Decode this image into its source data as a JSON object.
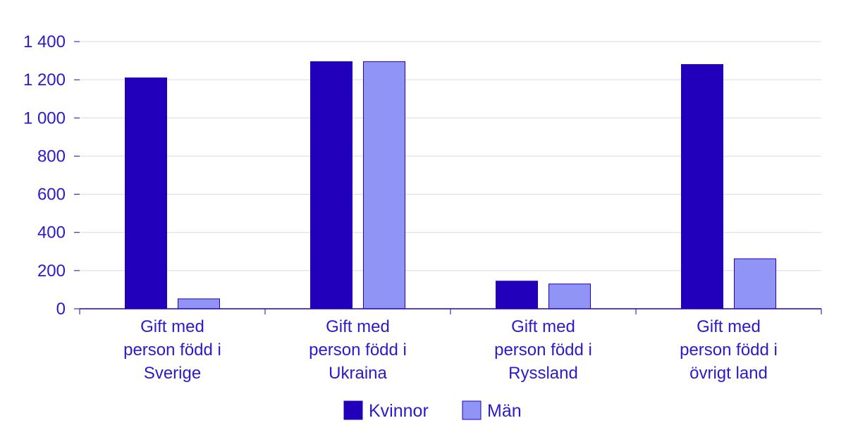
{
  "chart_data": {
    "type": "bar",
    "title": "",
    "xlabel": "",
    "ylabel": "",
    "ylim": [
      0,
      1400
    ],
    "yticks": [
      0,
      200,
      400,
      600,
      800,
      1000,
      1200,
      1400
    ],
    "ytick_labels": [
      "0",
      "200",
      "400",
      "600",
      "800",
      "1 000",
      "1 200",
      "1 400"
    ],
    "grid": true,
    "legend_position": "bottom",
    "categories": [
      [
        "Gift med",
        "person född i",
        "Sverige"
      ],
      [
        "Gift med",
        "person född i",
        "Ukraina"
      ],
      [
        "Gift med",
        "person född i",
        "Ryssland"
      ],
      [
        "Gift med",
        "person född i",
        "övrigt land"
      ]
    ],
    "series": [
      {
        "name": "Kvinnor",
        "color": "#2200bb",
        "values": [
          1210,
          1295,
          145,
          1280
        ]
      },
      {
        "name": "Män",
        "color": "#8f94f5",
        "values": [
          52,
          1295,
          130,
          262
        ]
      }
    ],
    "colors": {
      "text": "#2b1acc",
      "grid": "#d8d8ee",
      "axis": "#2200bb",
      "bar_stroke": "#2200bb"
    }
  }
}
